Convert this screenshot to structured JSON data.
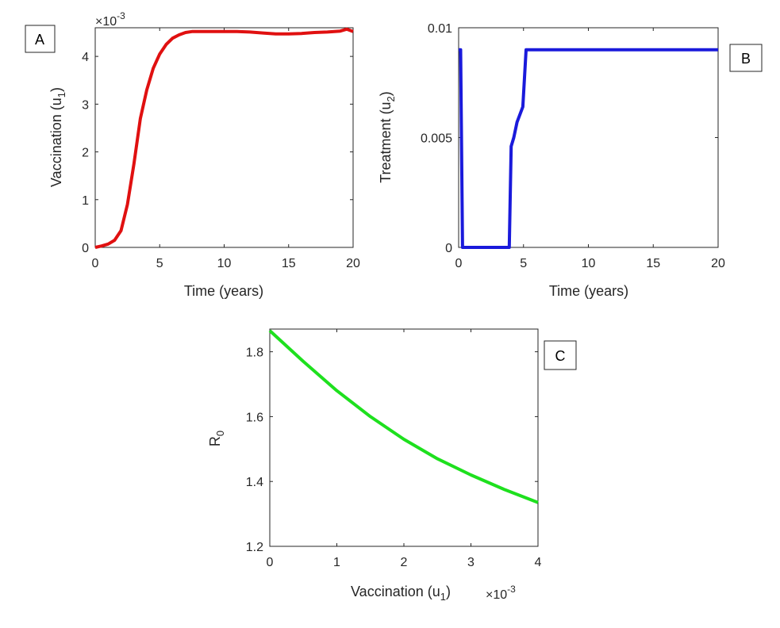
{
  "chart_data": [
    {
      "panel": "A",
      "type": "line",
      "xlabel": "Time (years)",
      "ylabel": "Vaccination (u",
      "ylabel_sub": "1",
      "ylabel_close": ")",
      "multiplier_label": "×10",
      "multiplier_exp": "-3",
      "xlim": [
        0,
        20
      ],
      "ylim": [
        0,
        4.6
      ],
      "x_ticks": [
        0,
        5,
        10,
        15,
        20
      ],
      "y_ticks": [
        0,
        1,
        2,
        3,
        4
      ],
      "color": "#e01010",
      "grid": false,
      "series": [
        {
          "x": [
            0,
            0.5,
            1,
            1.5,
            2,
            2.5,
            3,
            3.5,
            4,
            4.5,
            5,
            5.5,
            6,
            6.5,
            7,
            7.5,
            8,
            8.5,
            9,
            10,
            11,
            12,
            13,
            14,
            15,
            16,
            17,
            18,
            19,
            19.5,
            20
          ],
          "values": [
            0,
            0.03,
            0.07,
            0.15,
            0.35,
            0.9,
            1.75,
            2.7,
            3.3,
            3.75,
            4.05,
            4.25,
            4.38,
            4.45,
            4.5,
            4.52,
            4.52,
            4.52,
            4.52,
            4.52,
            4.52,
            4.51,
            4.49,
            4.47,
            4.47,
            4.48,
            4.5,
            4.51,
            4.53,
            4.57,
            4.52
          ]
        }
      ]
    },
    {
      "panel": "B",
      "type": "line",
      "xlabel": "Time (years)",
      "ylabel": "Treatment (u",
      "ylabel_sub": "2",
      "ylabel_close": ")",
      "xlim": [
        0,
        20
      ],
      "ylim": [
        0,
        0.01
      ],
      "x_ticks": [
        0,
        5,
        10,
        15,
        20
      ],
      "y_ticks": [
        0,
        0.005,
        0.01
      ],
      "y_tick_labels": [
        "0",
        "0.005",
        "0.01"
      ],
      "color": "#1a1adb",
      "grid": false,
      "series": [
        {
          "x": [
            0,
            0.15,
            0.3,
            0.5,
            3.9,
            4.05,
            4.25,
            4.5,
            4.95,
            5.2,
            20
          ],
          "values": [
            0.009,
            0.009,
            0,
            0,
            0,
            0.0046,
            0.005,
            0.0057,
            0.0064,
            0.009,
            0.009
          ]
        }
      ]
    },
    {
      "panel": "C",
      "type": "line",
      "xlabel": "Vaccination (u",
      "xlabel_sub": "1",
      "xlabel_close": ")",
      "ylabel": "R",
      "ylabel_sub": "0",
      "multiplier_label": "×10",
      "multiplier_exp": "-3",
      "xlim": [
        0,
        4
      ],
      "ylim": [
        1.2,
        1.87
      ],
      "x_ticks": [
        0,
        1,
        2,
        3,
        4
      ],
      "y_ticks": [
        1.2,
        1.4,
        1.6,
        1.8
      ],
      "y_tick_labels": [
        "1.2",
        "1.4",
        "1.6",
        "1.8"
      ],
      "color": "#1ee01e",
      "grid": false,
      "series": [
        {
          "x": [
            0,
            0.5,
            1,
            1.5,
            2,
            2.5,
            3,
            3.5,
            4
          ],
          "values": [
            1.865,
            1.77,
            1.68,
            1.6,
            1.53,
            1.47,
            1.42,
            1.375,
            1.335
          ]
        }
      ]
    }
  ]
}
